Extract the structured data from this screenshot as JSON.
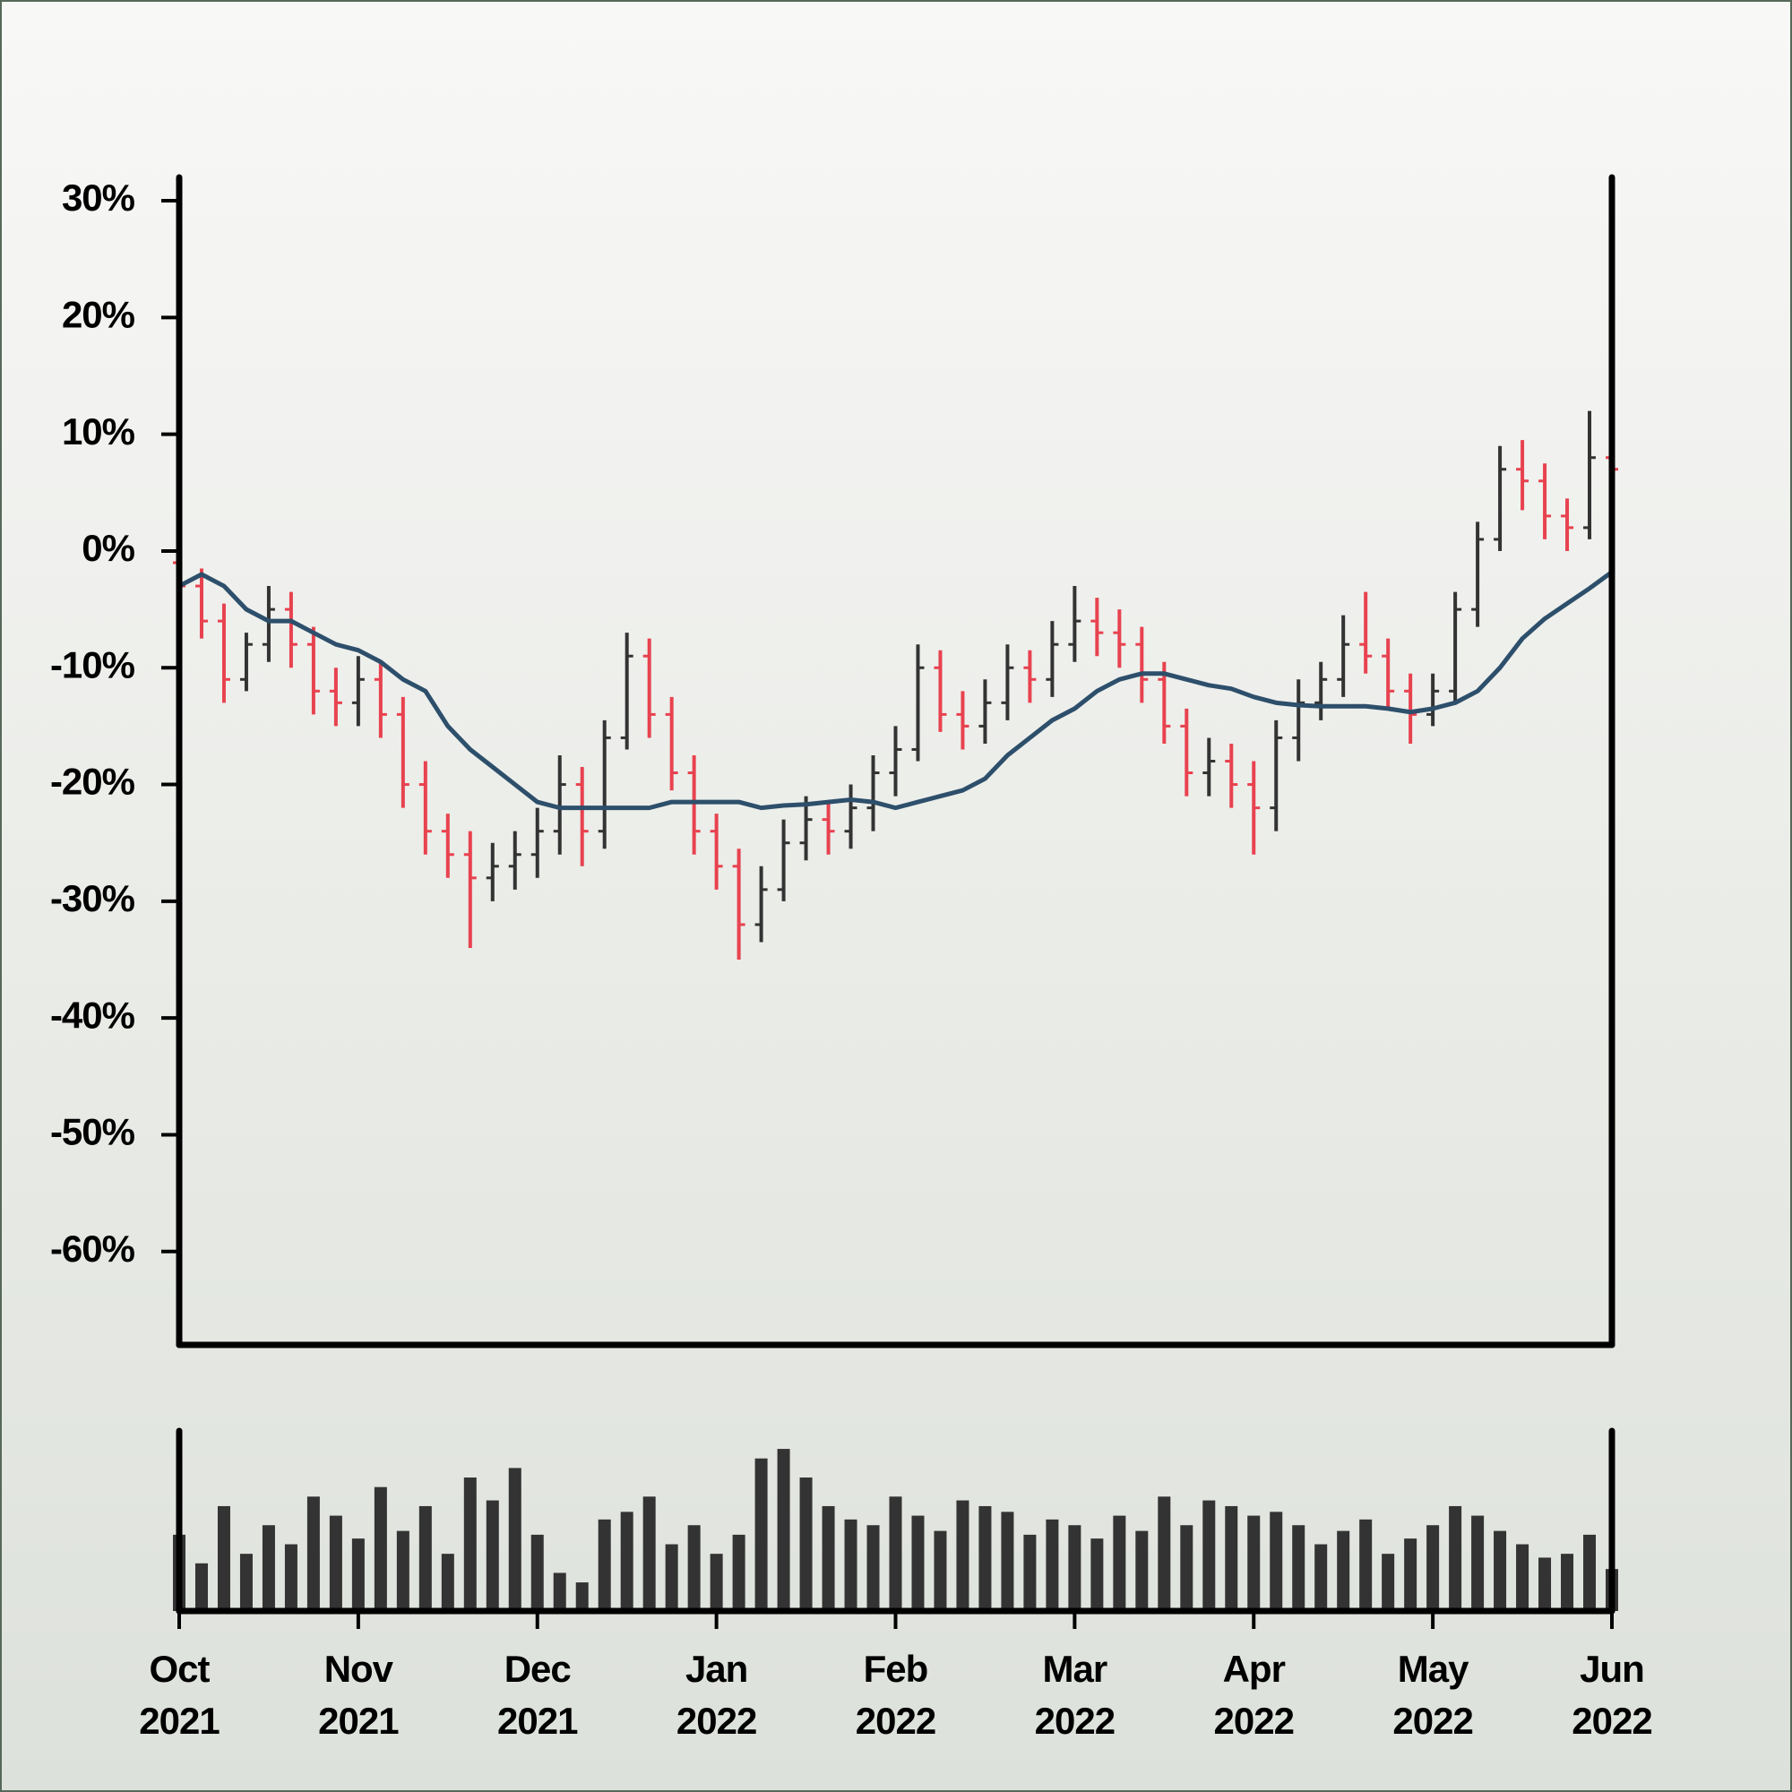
{
  "chart_data": {
    "type": "ohlc",
    "categories": [
      "Oct\n2021",
      null,
      null,
      null,
      null,
      null,
      null,
      null,
      "Nov\n2021",
      null,
      null,
      null,
      null,
      null,
      null,
      null,
      "Dec\n2021",
      null,
      null,
      null,
      null,
      null,
      null,
      null,
      "Jan\n2022",
      null,
      null,
      null,
      null,
      null,
      null,
      null,
      "Feb\n2022",
      null,
      null,
      null,
      null,
      null,
      null,
      null,
      "Mar\n2022",
      null,
      null,
      null,
      null,
      null,
      null,
      null,
      "Apr\n2022",
      null,
      null,
      null,
      null,
      null,
      null,
      null,
      "May\n2022",
      null,
      null,
      null,
      null,
      null,
      null,
      null,
      "Jun\n2022"
    ],
    "open": [
      -1,
      -3,
      -6,
      -11,
      -8,
      -5,
      -8,
      -12,
      -13,
      -11,
      -14,
      -20,
      -24,
      -26,
      -28,
      -27,
      -26,
      -24,
      -20,
      -24,
      -16,
      -9,
      -14,
      -19,
      -24,
      -27,
      -32,
      -29,
      -25,
      -23,
      -24,
      -22,
      -19,
      -17,
      -10,
      -14,
      -15,
      -13,
      -10,
      -11,
      -8,
      -6,
      -7,
      -8,
      -11,
      -15,
      -19,
      -18,
      -20,
      -22,
      -16,
      -13,
      -11,
      -8,
      -9,
      -12,
      -14,
      -12,
      -5,
      1,
      7,
      6,
      3,
      2,
      8
    ],
    "high": [
      0.5,
      -1.5,
      -4.5,
      -7,
      -3,
      -3.5,
      -6.5,
      -10,
      -9,
      -9.5,
      -12.5,
      -18,
      -22.5,
      -24,
      -25,
      -24,
      -22,
      -17.5,
      -18.5,
      -14.5,
      -7,
      -7.5,
      -12.5,
      -17.5,
      -22.5,
      -25.5,
      -27,
      -23,
      -21,
      -21.5,
      -20,
      -17.5,
      -15,
      -8,
      -8.5,
      -12,
      -11,
      -8,
      -8.5,
      -6,
      -3,
      -4,
      -5,
      -6.5,
      -9.5,
      -13.5,
      -16,
      -16.5,
      -18,
      -14.5,
      -11,
      -9.5,
      -5.5,
      -3.5,
      -7.5,
      -10.5,
      -10.5,
      -3.5,
      2.5,
      9,
      9.5,
      7.5,
      4.5,
      12,
      10
    ],
    "low": [
      -5,
      -7.5,
      -13,
      -12,
      -9.5,
      -10,
      -14,
      -15,
      -15,
      -16,
      -22,
      -26,
      -28,
      -34,
      -30,
      -29,
      -28,
      -26,
      -27,
      -25.5,
      -17,
      -16,
      -20.5,
      -26,
      -29,
      -35,
      -33.5,
      -30,
      -26.5,
      -26,
      -25.5,
      -24,
      -21,
      -18,
      -15.5,
      -17,
      -16.5,
      -14.5,
      -13,
      -12.5,
      -9.5,
      -9,
      -10,
      -13,
      -16.5,
      -21,
      -21,
      -22,
      -26,
      -24,
      -18,
      -14.5,
      -12.5,
      -10.5,
      -13.5,
      -16.5,
      -15,
      -13,
      -6.5,
      0,
      3.5,
      1,
      0,
      1,
      6
    ],
    "close": [
      -3,
      -6,
      -11,
      -8,
      -5,
      -8,
      -12,
      -13,
      -11,
      -14,
      -20,
      -24,
      -26,
      -28,
      -27,
      -26,
      -24,
      -20,
      -24,
      -16,
      -9,
      -14,
      -19,
      -24,
      -27,
      -32,
      -29,
      -25,
      -23,
      -24,
      -22,
      -19,
      -17,
      -10,
      -14,
      -15,
      -13,
      -10,
      -11,
      -8,
      -6,
      -7,
      -8,
      -11,
      -15,
      -19,
      -18,
      -20,
      -22,
      -16,
      -13,
      -11,
      -8,
      -9,
      -12,
      -14,
      -12,
      -5,
      1,
      7,
      6,
      3,
      2,
      8,
      7
    ],
    "up_color": "#333333",
    "down_color": "#e8424f",
    "moving_average": {
      "color": "#2d4f6b",
      "values": [
        -3,
        -2,
        -3,
        -5,
        -6,
        -6,
        -7,
        -8,
        -8.5,
        -9.5,
        -11,
        -12,
        -15,
        -17,
        -18.5,
        -20,
        -21.5,
        -22,
        -22,
        -22,
        -22,
        -22,
        -21.5,
        -21.5,
        -21.5,
        -21.5,
        -22,
        -21.8,
        -21.7,
        -21.5,
        -21.3,
        -21.5,
        -22,
        -21.5,
        -21,
        -20.5,
        -19.5,
        -17.5,
        -16,
        -14.5,
        -13.5,
        -12,
        -11,
        -10.5,
        -10.5,
        -11,
        -11.5,
        -11.8,
        -12.5,
        -13,
        -13.2,
        -13.3,
        -13.3,
        -13.3,
        -13.5,
        -13.8,
        -13.5,
        -13,
        -12,
        -10,
        -7.5,
        -5.8,
        -4.5,
        -3.2,
        -1.8
      ]
    },
    "volume": {
      "color": "#333333",
      "values": [
        40,
        25,
        55,
        30,
        45,
        35,
        60,
        50,
        38,
        65,
        42,
        55,
        30,
        70,
        58,
        75,
        40,
        20,
        15,
        48,
        52,
        60,
        35,
        45,
        30,
        40,
        80,
        85,
        70,
        55,
        48,
        45,
        60,
        50,
        42,
        58,
        55,
        52,
        40,
        48,
        45,
        38,
        50,
        42,
        60,
        45,
        58,
        55,
        50,
        52,
        45,
        35,
        42,
        48,
        30,
        38,
        45,
        55,
        50,
        42,
        35,
        28,
        30,
        40,
        22
      ]
    },
    "ylim": [
      -68,
      32
    ],
    "yticks": [
      {
        "value": 30,
        "label": "30%"
      },
      {
        "value": 20,
        "label": "20%"
      },
      {
        "value": 10,
        "label": "10%"
      },
      {
        "value": 0,
        "label": "0%"
      },
      {
        "value": -10,
        "label": "-10%"
      },
      {
        "value": -20,
        "label": "-20%"
      },
      {
        "value": -30,
        "label": "-30%"
      },
      {
        "value": -40,
        "label": "-40%"
      },
      {
        "value": -50,
        "label": "-50%"
      },
      {
        "value": -60,
        "label": "-60%"
      }
    ]
  }
}
